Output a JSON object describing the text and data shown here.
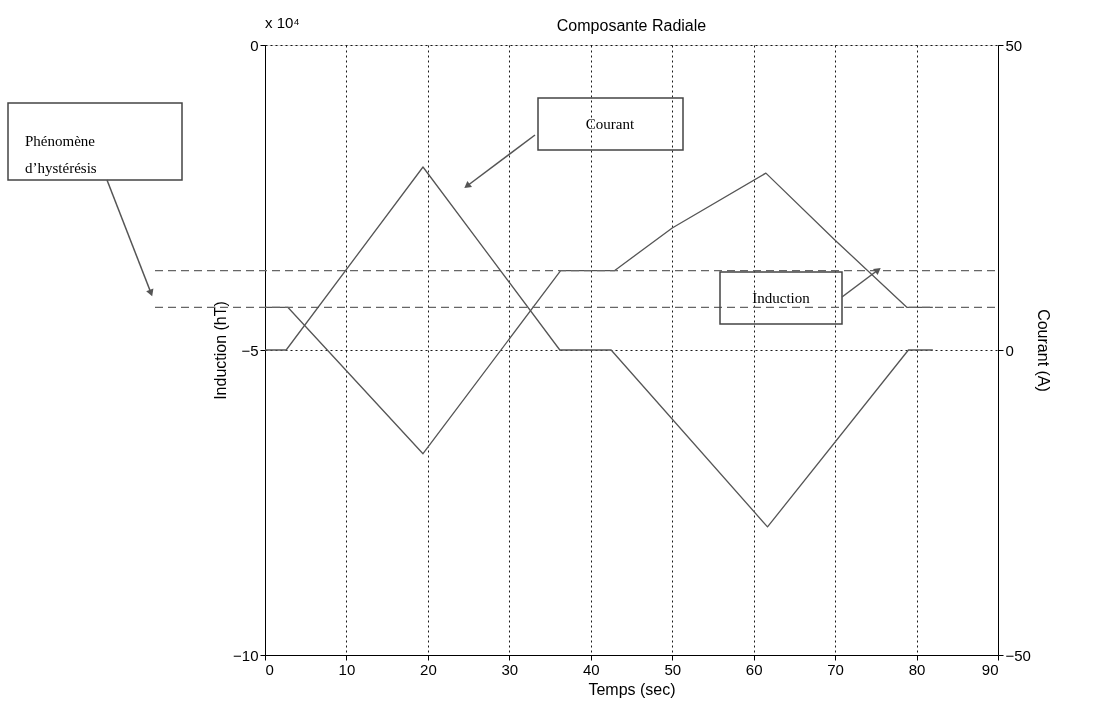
{
  "chart_data": {
    "type": "line",
    "title": "Composante Radiale",
    "xlabel": "Temps (sec)",
    "ylabel": "Induction (hT)",
    "y2label": "Courant (A)",
    "xlim": [
      0,
      90
    ],
    "xticks": [
      0,
      10,
      20,
      30,
      40,
      50,
      60,
      70,
      80,
      90
    ],
    "ylim": [
      -10,
      0
    ],
    "yticks": [
      -10,
      -5,
      0
    ],
    "y2lim": [
      -50,
      50
    ],
    "y2ticks": [
      -50,
      0,
      50
    ],
    "grid": true,
    "marker": "none",
    "line_style": "solid",
    "series": [
      {
        "color": "#555555",
        "x": [
          0,
          2.8,
          19.4,
          36.3,
          42.9,
          50,
          61.5,
          70,
          78.8,
          82
        ],
        "values": [
          -4.3,
          -4.3,
          -6.7,
          -3.7,
          -3.7,
          -3.0,
          -2.1,
          -3.2,
          -4.3,
          -4.3
        ]
      },
      {
        "color": "#555555",
        "axis": "y2",
        "x": [
          0,
          2.6,
          19.4,
          36.2,
          42.5,
          61.7,
          79,
          82
        ],
        "values": [
          0,
          0,
          30,
          0,
          0,
          -29,
          0,
          0
        ]
      }
    ],
    "ref_lines": [
      {
        "axis": "y",
        "value": -3.7,
        "color": "#666666",
        "line_style": "dashed"
      },
      {
        "axis": "y",
        "value": -4.3,
        "color": "#666666",
        "line_style": "dashed"
      }
    ],
    "annotations": [
      "x 10⁴",
      "Courant",
      "Induction",
      "Phénomène d’hystérésis"
    ]
  }
}
